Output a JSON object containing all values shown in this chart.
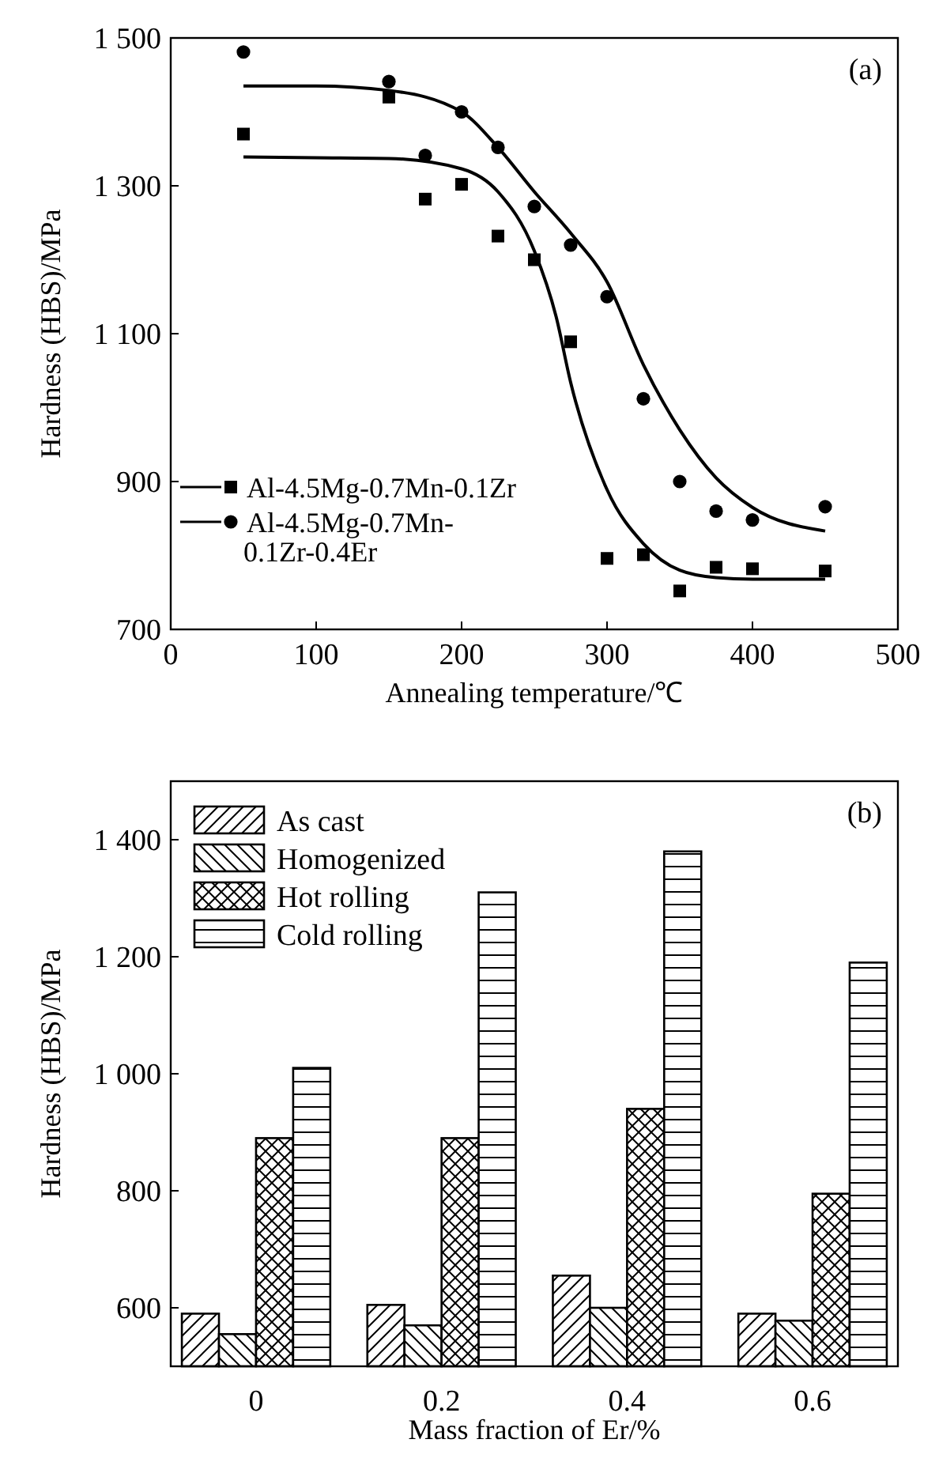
{
  "chart_data": [
    {
      "type": "scatter",
      "xlabel": "Annealing temperature/℃",
      "ylabel": "Hardness (HBS)/MPa",
      "annotations": [
        "(a)"
      ],
      "xlim": [
        0,
        500
      ],
      "xticks": [
        0,
        100,
        200,
        300,
        400,
        500
      ],
      "ylim": [
        700,
        1500
      ],
      "yticks": [
        700,
        900,
        {
          "value": 1100,
          "label": "1 100"
        },
        {
          "value": 1300,
          "label": "1 300"
        },
        {
          "value": 1500,
          "label": "1 500"
        }
      ],
      "legend": "bottom left",
      "series": [
        {
          "name": "Al-4.5Mg-0.7Mn-0.1Zr",
          "type": "scatter",
          "marker": "square",
          "color": "#000000",
          "x": [
            50,
            150,
            175,
            200,
            225,
            250,
            275,
            300,
            325,
            350,
            375,
            400,
            450
          ],
          "values": [
            1370,
            1420,
            1282,
            1302,
            1232,
            1200,
            1089,
            796,
            801,
            752,
            784,
            782,
            779
          ]
        },
        {
          "name": "Al-4.5Mg-0.7Mn-0.1Zr-0.4Er",
          "type": "scatter",
          "marker": "circle",
          "color": "#000000",
          "x": [
            50,
            150,
            175,
            200,
            225,
            250,
            275,
            300,
            325,
            350,
            375,
            400,
            450
          ],
          "values": [
            1481,
            1441,
            1341,
            1400,
            1352,
            1272,
            1220,
            1150,
            1012,
            900,
            860,
            848,
            866
          ]
        },
        {
          "type": "line",
          "color": "#000000",
          "x": [
            50,
            100,
            150,
            200,
            225,
            250,
            265,
            275,
            300,
            325,
            350,
            375,
            400,
            450
          ],
          "values": [
            1339,
            1338,
            1337,
            1323,
            1292,
            1212,
            1123,
            1034,
            889,
            816,
            780,
            770,
            768,
            768
          ]
        },
        {
          "type": "line",
          "color": "#000000",
          "x": [
            50,
            100,
            150,
            200,
            225,
            250,
            275,
            300,
            325,
            350,
            375,
            400,
            450
          ],
          "values": [
            1435,
            1435,
            1429,
            1400,
            1352,
            1292,
            1236,
            1170,
            1058,
            970,
            905,
            865,
            833
          ]
        }
      ]
    },
    {
      "type": "bar",
      "xlabel": "Mass fraction of Er/%",
      "ylabel": "Hardness (HBS)/MPa",
      "annotations": [
        "(b)"
      ],
      "categories": [
        "0",
        "0.2",
        "0.4",
        "0.6"
      ],
      "ylim": [
        500,
        1500
      ],
      "yticks": [
        600,
        800,
        {
          "value": 1000,
          "label": "1 000"
        },
        {
          "value": 1200,
          "label": "1 200"
        },
        {
          "value": 1400,
          "label": "1 400"
        }
      ],
      "legend": "top left",
      "series": [
        {
          "name": "As cast",
          "color": "#000000",
          "values": [
            590,
            605,
            655,
            590
          ]
        },
        {
          "name": "Homogenized",
          "color": "#000000",
          "values": [
            555,
            570,
            600,
            578
          ]
        },
        {
          "name": "Hot rolling",
          "color": "#000000",
          "values": [
            890,
            890,
            940,
            795
          ]
        },
        {
          "name": "Cold rolling",
          "color": "#000000",
          "values": [
            1010,
            1310,
            1380,
            1190
          ]
        }
      ]
    }
  ]
}
